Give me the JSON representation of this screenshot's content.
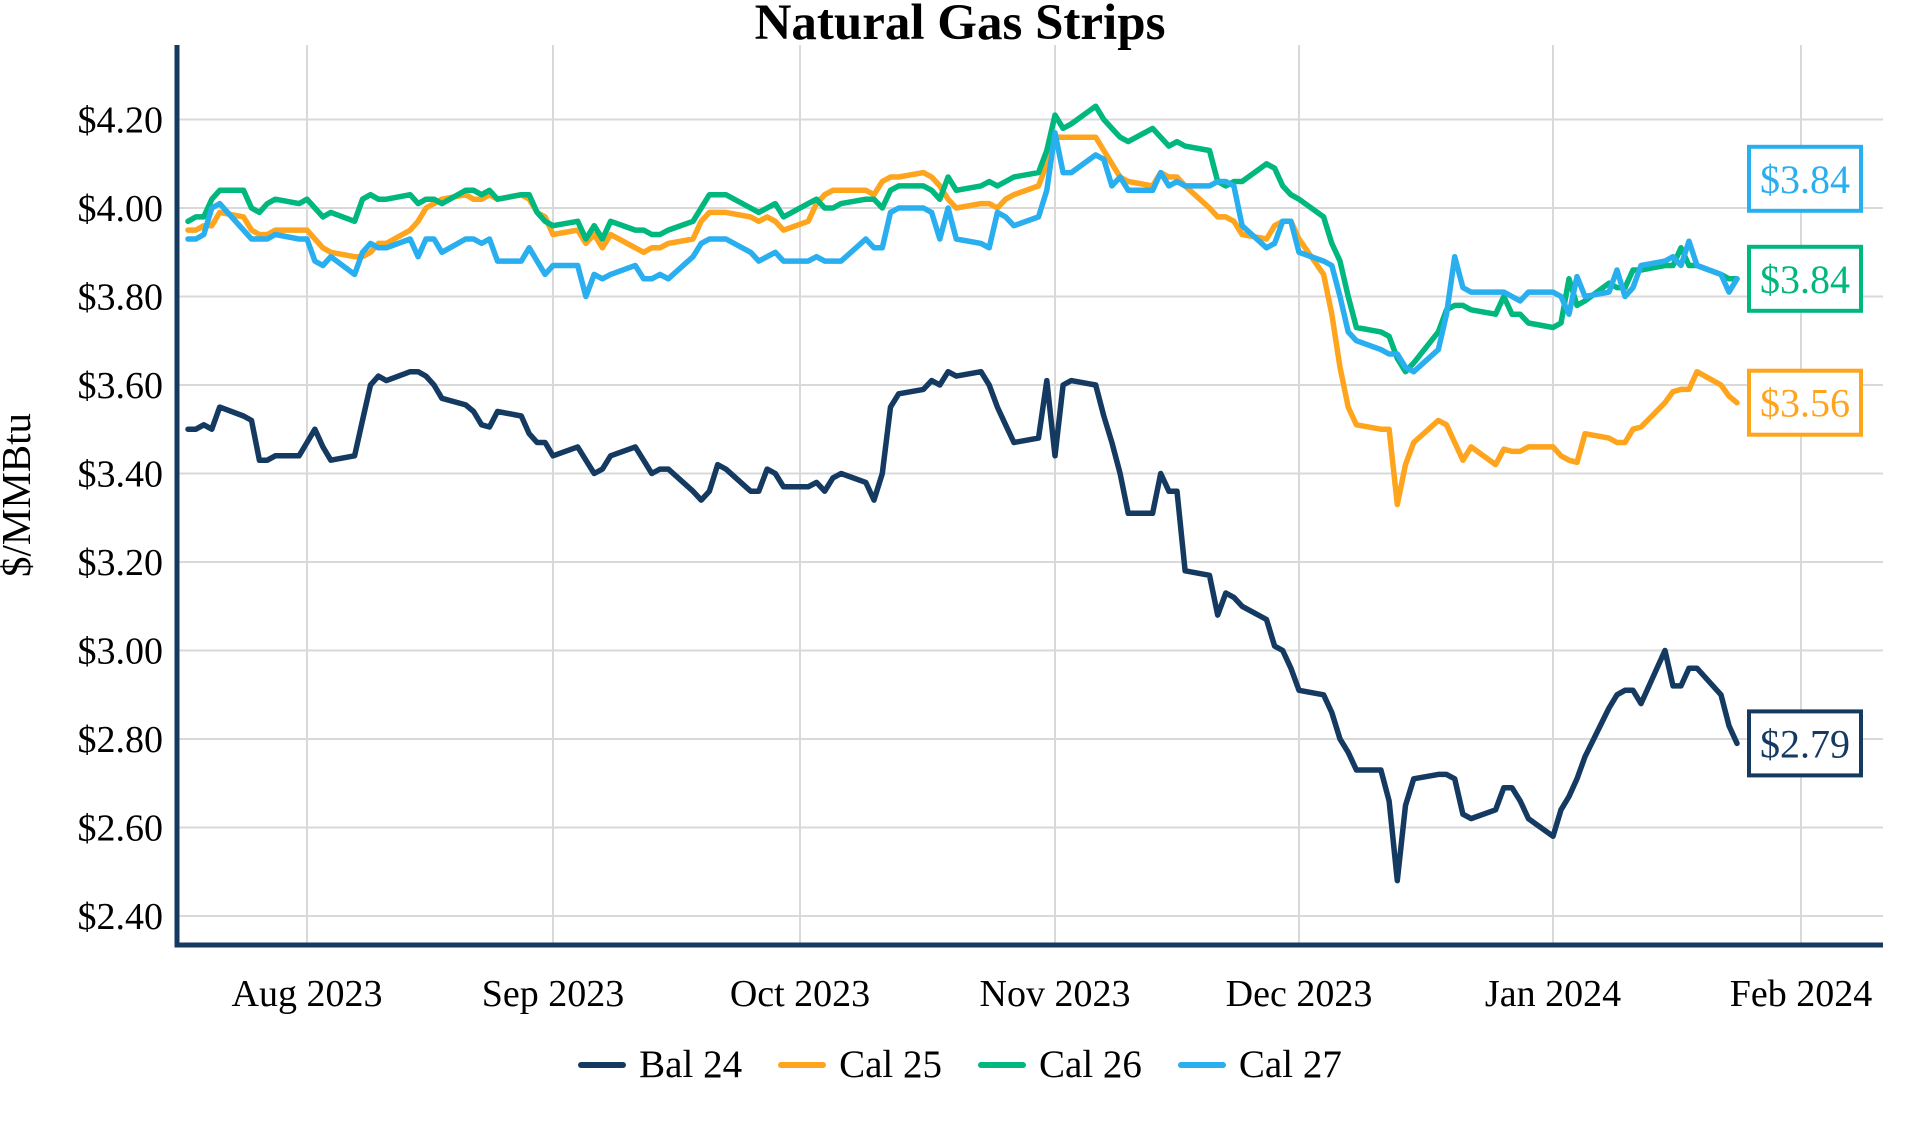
{
  "chart_data": {
    "type": "line",
    "title": "Natural Gas Strips",
    "legend_position": "bottom",
    "grid": true,
    "colors": {
      "axis": "#143A62",
      "grid": "#D9D9D9",
      "background": "#FFFFFF",
      "label_box_fill": "#FFFFFF"
    },
    "y_axis": {
      "label": "$/MMBtu",
      "min": 2.4,
      "max": 4.2,
      "ticks": [
        {
          "value": 4.2,
          "label": "$4.20"
        },
        {
          "value": 4.0,
          "label": "$4.00"
        },
        {
          "value": 3.8,
          "label": "$3.80"
        },
        {
          "value": 3.6,
          "label": "$3.60"
        },
        {
          "value": 3.4,
          "label": "$3.40"
        },
        {
          "value": 3.2,
          "label": "$3.20"
        },
        {
          "value": 3.0,
          "label": "$3.00"
        },
        {
          "value": 2.8,
          "label": "$2.80"
        },
        {
          "value": 2.6,
          "label": "$2.60"
        },
        {
          "value": 2.4,
          "label": "$2.40"
        }
      ]
    },
    "x_axis": {
      "ticks": [
        {
          "date": "2023-08-01",
          "label": "Aug 2023"
        },
        {
          "date": "2023-09-01",
          "label": "Sep 2023"
        },
        {
          "date": "2023-10-01",
          "label": "Oct 2023"
        },
        {
          "date": "2023-11-01",
          "label": "Nov 2023"
        },
        {
          "date": "2023-12-01",
          "label": "Dec 2023"
        },
        {
          "date": "2024-01-01",
          "label": "Jan 2024"
        },
        {
          "date": "2024-02-01",
          "label": "Feb 2024"
        }
      ]
    },
    "x": [
      "2023-07-17",
      "2023-07-18",
      "2023-07-19",
      "2023-07-20",
      "2023-07-21",
      "2023-07-24",
      "2023-07-25",
      "2023-07-26",
      "2023-07-27",
      "2023-07-28",
      "2023-07-31",
      "2023-08-01",
      "2023-08-02",
      "2023-08-03",
      "2023-08-04",
      "2023-08-07",
      "2023-08-08",
      "2023-08-09",
      "2023-08-10",
      "2023-08-11",
      "2023-08-14",
      "2023-08-15",
      "2023-08-16",
      "2023-08-17",
      "2023-08-18",
      "2023-08-21",
      "2023-08-22",
      "2023-08-23",
      "2023-08-24",
      "2023-08-25",
      "2023-08-28",
      "2023-08-29",
      "2023-08-30",
      "2023-08-31",
      "2023-09-01",
      "2023-09-04",
      "2023-09-05",
      "2023-09-06",
      "2023-09-07",
      "2023-09-08",
      "2023-09-11",
      "2023-09-12",
      "2023-09-13",
      "2023-09-14",
      "2023-09-15",
      "2023-09-18",
      "2023-09-19",
      "2023-09-20",
      "2023-09-21",
      "2023-09-22",
      "2023-09-25",
      "2023-09-26",
      "2023-09-27",
      "2023-09-28",
      "2023-09-29",
      "2023-10-02",
      "2023-10-03",
      "2023-10-04",
      "2023-10-05",
      "2023-10-06",
      "2023-10-09",
      "2023-10-10",
      "2023-10-11",
      "2023-10-12",
      "2023-10-13",
      "2023-10-16",
      "2023-10-17",
      "2023-10-18",
      "2023-10-19",
      "2023-10-20",
      "2023-10-23",
      "2023-10-24",
      "2023-10-25",
      "2023-10-26",
      "2023-10-27",
      "2023-10-30",
      "2023-10-31",
      "2023-11-01",
      "2023-11-02",
      "2023-11-03",
      "2023-11-06",
      "2023-11-07",
      "2023-11-08",
      "2023-11-09",
      "2023-11-10",
      "2023-11-13",
      "2023-11-14",
      "2023-11-15",
      "2023-11-16",
      "2023-11-17",
      "2023-11-20",
      "2023-11-21",
      "2023-11-22",
      "2023-11-23",
      "2023-11-24",
      "2023-11-27",
      "2023-11-28",
      "2023-11-29",
      "2023-11-30",
      "2023-12-01",
      "2023-12-04",
      "2023-12-05",
      "2023-12-06",
      "2023-12-07",
      "2023-12-08",
      "2023-12-11",
      "2023-12-12",
      "2023-12-13",
      "2023-12-14",
      "2023-12-15",
      "2023-12-18",
      "2023-12-19",
      "2023-12-20",
      "2023-12-21",
      "2023-12-22",
      "2023-12-25",
      "2023-12-26",
      "2023-12-27",
      "2023-12-28",
      "2023-12-29",
      "2024-01-01",
      "2024-01-02",
      "2024-01-03",
      "2024-01-04",
      "2024-01-05",
      "2024-01-08",
      "2024-01-09",
      "2024-01-10",
      "2024-01-11",
      "2024-01-12",
      "2024-01-15",
      "2024-01-16",
      "2024-01-17",
      "2024-01-18",
      "2024-01-19",
      "2024-01-22",
      "2024-01-23",
      "2024-01-24"
    ],
    "series": [
      {
        "name": "Bal 24",
        "color": "#143A62",
        "end_label": {
          "text": "$2.79",
          "dy": 0
        },
        "values": [
          3.5,
          3.5,
          3.51,
          3.5,
          3.55,
          3.53,
          3.52,
          3.43,
          3.43,
          3.44,
          3.44,
          3.47,
          3.5,
          3.46,
          3.43,
          3.44,
          3.52,
          3.6,
          3.62,
          3.61,
          3.63,
          3.63,
          3.62,
          3.6,
          3.57,
          3.555,
          3.54,
          3.51,
          3.505,
          3.54,
          3.53,
          3.49,
          3.47,
          3.47,
          3.44,
          3.46,
          3.43,
          3.4,
          3.41,
          3.44,
          3.46,
          3.43,
          3.4,
          3.41,
          3.41,
          3.36,
          3.34,
          3.36,
          3.42,
          3.41,
          3.36,
          3.36,
          3.41,
          3.4,
          3.37,
          3.37,
          3.38,
          3.36,
          3.39,
          3.4,
          3.38,
          3.34,
          3.4,
          3.55,
          3.58,
          3.59,
          3.61,
          3.6,
          3.63,
          3.62,
          3.63,
          3.6,
          3.55,
          3.51,
          3.47,
          3.48,
          3.61,
          3.44,
          3.6,
          3.61,
          3.6,
          3.53,
          3.47,
          3.4,
          3.31,
          3.31,
          3.4,
          3.36,
          3.36,
          3.18,
          3.17,
          3.08,
          3.13,
          3.12,
          3.1,
          3.07,
          3.01,
          3.0,
          2.96,
          2.91,
          2.9,
          2.86,
          2.8,
          2.77,
          2.73,
          2.73,
          2.66,
          2.48,
          2.65,
          2.71,
          2.72,
          2.72,
          2.71,
          2.63,
          2.62,
          2.64,
          2.69,
          2.69,
          2.66,
          2.62,
          2.58,
          2.64,
          2.67,
          2.71,
          2.76,
          2.87,
          2.9,
          2.91,
          2.91,
          2.88,
          3.0,
          2.92,
          2.92,
          2.96,
          2.96,
          2.9,
          2.83,
          2.79
        ]
      },
      {
        "name": "Cal 25",
        "color": "#FFA41D",
        "end_label": {
          "text": "$3.56",
          "dy": 0
        },
        "values": [
          3.95,
          3.95,
          3.96,
          3.96,
          3.99,
          3.98,
          3.95,
          3.94,
          3.94,
          3.95,
          3.95,
          3.95,
          3.93,
          3.91,
          3.9,
          3.89,
          3.89,
          3.9,
          3.92,
          3.92,
          3.95,
          3.97,
          4.0,
          4.01,
          4.02,
          4.03,
          4.02,
          4.02,
          4.03,
          4.02,
          4.03,
          4.02,
          3.99,
          3.98,
          3.94,
          3.95,
          3.92,
          3.94,
          3.91,
          3.94,
          3.91,
          3.9,
          3.91,
          3.91,
          3.92,
          3.93,
          3.97,
          3.99,
          3.99,
          3.99,
          3.98,
          3.97,
          3.98,
          3.97,
          3.95,
          3.97,
          4.01,
          4.03,
          4.04,
          4.04,
          4.04,
          4.03,
          4.06,
          4.07,
          4.07,
          4.08,
          4.07,
          4.05,
          4.02,
          4.0,
          4.01,
          4.01,
          4.0,
          4.02,
          4.03,
          4.05,
          4.1,
          4.16,
          4.16,
          4.16,
          4.16,
          4.13,
          4.1,
          4.07,
          4.06,
          4.05,
          4.08,
          4.07,
          4.07,
          4.05,
          4.0,
          3.98,
          3.98,
          3.97,
          3.94,
          3.93,
          3.96,
          3.97,
          3.97,
          3.93,
          3.85,
          3.76,
          3.64,
          3.55,
          3.51,
          3.5,
          3.5,
          3.33,
          3.42,
          3.47,
          3.52,
          3.51,
          3.47,
          3.43,
          3.46,
          3.42,
          3.455,
          3.45,
          3.45,
          3.46,
          3.46,
          3.44,
          3.43,
          3.425,
          3.49,
          3.48,
          3.47,
          3.47,
          3.5,
          3.505,
          3.56,
          3.585,
          3.59,
          3.59,
          3.63,
          3.6,
          3.575,
          3.56
        ]
      },
      {
        "name": "Cal 26",
        "color": "#00B77E",
        "end_label": {
          "text": "$3.84",
          "dy": 0
        },
        "values": [
          3.97,
          3.98,
          3.98,
          4.02,
          4.04,
          4.04,
          4.0,
          3.99,
          4.01,
          4.02,
          4.01,
          4.02,
          4.0,
          3.98,
          3.99,
          3.97,
          4.02,
          4.03,
          4.02,
          4.02,
          4.03,
          4.01,
          4.02,
          4.02,
          4.01,
          4.04,
          4.04,
          4.03,
          4.04,
          4.02,
          4.03,
          4.03,
          3.99,
          3.97,
          3.96,
          3.97,
          3.93,
          3.96,
          3.93,
          3.97,
          3.95,
          3.95,
          3.94,
          3.94,
          3.95,
          3.97,
          4.0,
          4.03,
          4.03,
          4.03,
          4.0,
          3.99,
          4.0,
          4.01,
          3.98,
          4.01,
          4.02,
          4.0,
          4.0,
          4.01,
          4.02,
          4.02,
          4.0,
          4.04,
          4.05,
          4.05,
          4.04,
          4.02,
          4.07,
          4.04,
          4.05,
          4.06,
          4.05,
          4.06,
          4.07,
          4.08,
          4.13,
          4.21,
          4.18,
          4.19,
          4.23,
          4.2,
          4.18,
          4.16,
          4.15,
          4.18,
          4.16,
          4.14,
          4.15,
          4.14,
          4.13,
          4.06,
          4.05,
          4.06,
          4.06,
          4.1,
          4.09,
          4.05,
          4.03,
          4.02,
          3.98,
          3.92,
          3.88,
          3.8,
          3.73,
          3.72,
          3.71,
          3.66,
          3.63,
          3.65,
          3.72,
          3.77,
          3.78,
          3.78,
          3.77,
          3.76,
          3.8,
          3.76,
          3.76,
          3.74,
          3.73,
          3.74,
          3.84,
          3.78,
          3.79,
          3.83,
          3.82,
          3.82,
          3.86,
          3.86,
          3.87,
          3.87,
          3.91,
          3.87,
          3.87,
          3.85,
          3.84,
          3.84
        ]
      },
      {
        "name": "Cal 27",
        "color": "#29AEEF",
        "end_label": {
          "text": "$3.84",
          "dy": -100
        },
        "values": [
          3.93,
          3.93,
          3.94,
          4.0,
          4.01,
          3.95,
          3.93,
          3.93,
          3.93,
          3.94,
          3.93,
          3.93,
          3.88,
          3.87,
          3.89,
          3.85,
          3.9,
          3.92,
          3.91,
          3.91,
          3.93,
          3.89,
          3.93,
          3.93,
          3.9,
          3.93,
          3.93,
          3.92,
          3.93,
          3.88,
          3.88,
          3.91,
          3.88,
          3.85,
          3.87,
          3.87,
          3.8,
          3.85,
          3.84,
          3.85,
          3.87,
          3.84,
          3.84,
          3.85,
          3.84,
          3.89,
          3.92,
          3.93,
          3.93,
          3.93,
          3.9,
          3.88,
          3.89,
          3.9,
          3.88,
          3.88,
          3.89,
          3.88,
          3.88,
          3.88,
          3.93,
          3.91,
          3.91,
          3.99,
          4.0,
          4.0,
          3.99,
          3.93,
          4.0,
          3.93,
          3.92,
          3.91,
          3.99,
          3.98,
          3.96,
          3.98,
          4.04,
          4.17,
          4.08,
          4.08,
          4.12,
          4.11,
          4.05,
          4.07,
          4.04,
          4.04,
          4.08,
          4.05,
          4.06,
          4.05,
          4.05,
          4.06,
          4.06,
          4.05,
          3.96,
          3.91,
          3.92,
          3.97,
          3.97,
          3.9,
          3.88,
          3.87,
          3.8,
          3.72,
          3.7,
          3.68,
          3.67,
          3.67,
          3.64,
          3.63,
          3.68,
          3.76,
          3.89,
          3.82,
          3.81,
          3.81,
          3.81,
          3.8,
          3.79,
          3.81,
          3.81,
          3.8,
          3.76,
          3.845,
          3.8,
          3.81,
          3.86,
          3.8,
          3.82,
          3.87,
          3.88,
          3.89,
          3.87,
          3.925,
          3.87,
          3.85,
          3.81,
          3.84
        ]
      }
    ]
  }
}
